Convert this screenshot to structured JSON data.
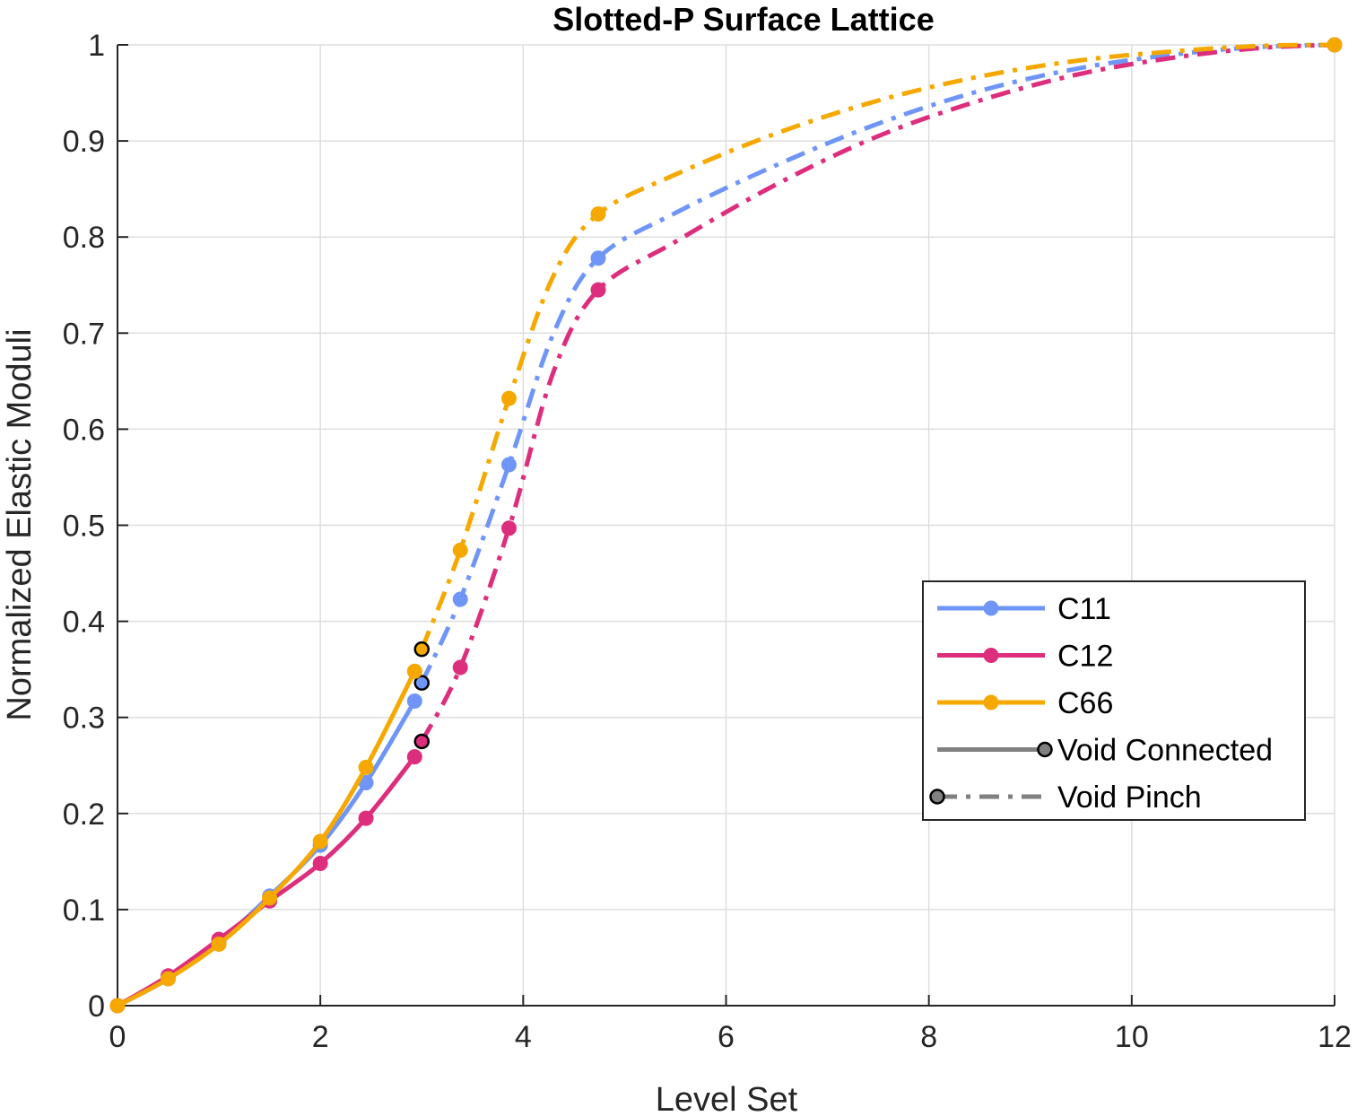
{
  "chart_data": {
    "type": "line",
    "title": "Slotted-P Surface Lattice",
    "xlabel": "Level Set",
    "ylabel": "Normalized Elastic Moduli",
    "xlim": [
      0,
      12
    ],
    "ylim": [
      0,
      1
    ],
    "xticks": [
      0,
      2,
      4,
      6,
      8,
      10,
      12
    ],
    "yticks": [
      0,
      0.1,
      0.2,
      0.3,
      0.4,
      0.5,
      0.6,
      0.7,
      0.8,
      0.9,
      1
    ],
    "grid": true,
    "legend_position": "lower-right",
    "series": [
      {
        "name": "C11",
        "color": "#6f96f7",
        "connected": {
          "x": [
            0,
            0.5,
            1.0,
            1.5,
            2.0,
            2.45,
            2.93
          ],
          "y": [
            0,
            0.028,
            0.066,
            0.114,
            0.167,
            0.232,
            0.317
          ]
        },
        "transition": {
          "x": 3.0,
          "y": 0.336
        },
        "pinch": {
          "x": [
            3.38,
            3.86,
            4.74,
            12
          ],
          "y": [
            0.423,
            0.563,
            0.778,
            1.0
          ]
        },
        "pinch_curve": {
          "x": [
            3.0,
            3.38,
            3.86,
            4.3,
            4.74,
            5.5,
            6.5,
            7.5,
            8.5,
            9.5,
            10.5,
            11.3,
            12
          ],
          "y": [
            0.336,
            0.423,
            0.563,
            0.7,
            0.778,
            0.825,
            0.875,
            0.918,
            0.952,
            0.976,
            0.991,
            0.998,
            1.0
          ]
        }
      },
      {
        "name": "C12",
        "color": "#dd2e7d",
        "connected": {
          "x": [
            0,
            0.5,
            1.0,
            1.5,
            2.0,
            2.45,
            2.93
          ],
          "y": [
            0,
            0.031,
            0.069,
            0.109,
            0.148,
            0.195,
            0.259
          ]
        },
        "transition": {
          "x": 3.0,
          "y": 0.275
        },
        "pinch": {
          "x": [
            3.38,
            3.86,
            4.74,
            12
          ],
          "y": [
            0.352,
            0.497,
            0.745,
            1.0
          ]
        },
        "pinch_curve": {
          "x": [
            3.0,
            3.38,
            3.86,
            4.3,
            4.74,
            5.5,
            6.5,
            7.5,
            8.5,
            9.5,
            10.5,
            11.3,
            12
          ],
          "y": [
            0.275,
            0.352,
            0.497,
            0.66,
            0.745,
            0.795,
            0.855,
            0.905,
            0.942,
            0.97,
            0.988,
            0.997,
            1.0
          ]
        }
      },
      {
        "name": "C66",
        "color": "#f5a800",
        "connected": {
          "x": [
            0,
            0.5,
            1.0,
            1.5,
            2.0,
            2.45,
            2.93
          ],
          "y": [
            0,
            0.028,
            0.064,
            0.112,
            0.171,
            0.248,
            0.348
          ]
        },
        "transition": {
          "x": 3.0,
          "y": 0.371
        },
        "pinch": {
          "x": [
            3.38,
            3.86,
            4.74,
            12
          ],
          "y": [
            0.474,
            0.632,
            0.824,
            1.0
          ]
        },
        "pinch_curve": {
          "x": [
            3.0,
            3.38,
            3.86,
            4.3,
            4.74,
            5.5,
            6.5,
            7.5,
            8.5,
            9.5,
            10.5,
            11.3,
            12
          ],
          "y": [
            0.371,
            0.474,
            0.632,
            0.76,
            0.824,
            0.865,
            0.908,
            0.942,
            0.967,
            0.984,
            0.994,
            0.999,
            1.0
          ]
        }
      }
    ],
    "legend_entries": [
      {
        "label": "C11",
        "style": "solid",
        "color": "#6f96f7"
      },
      {
        "label": "C12",
        "style": "solid",
        "color": "#dd2e7d"
      },
      {
        "label": "C66",
        "style": "solid",
        "color": "#f5a800"
      },
      {
        "label": "Void Connected",
        "style": "solid",
        "color": "#808080"
      },
      {
        "label": "Void Pinch",
        "style": "dashdot",
        "color": "#808080"
      }
    ]
  }
}
